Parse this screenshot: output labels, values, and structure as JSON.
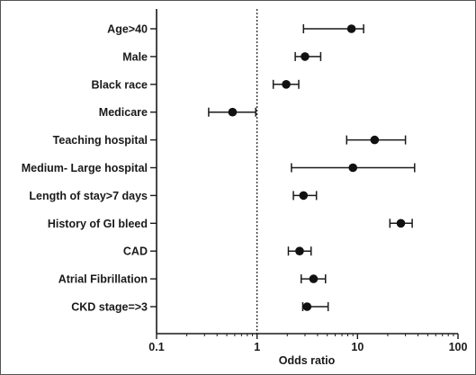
{
  "chart_data": {
    "type": "forest",
    "xlabel": "Odds ratio",
    "xscale": "log",
    "xlim": [
      0.1,
      100
    ],
    "xticks": [
      0.1,
      1,
      10,
      100
    ],
    "xtick_labels": [
      "0.1",
      "1",
      "10",
      "100"
    ],
    "reference_line": 1,
    "rows": [
      {
        "label": "Age>40",
        "or": 8.7,
        "lo": 2.9,
        "hi": 11.5
      },
      {
        "label": "Male",
        "or": 3.0,
        "lo": 2.4,
        "hi": 4.3
      },
      {
        "label": "Black race",
        "or": 1.95,
        "lo": 1.45,
        "hi": 2.6
      },
      {
        "label": "Medicare",
        "or": 0.57,
        "lo": 0.33,
        "hi": 0.97
      },
      {
        "label": "Teaching hospital",
        "or": 14.8,
        "lo": 7.8,
        "hi": 30
      },
      {
        "label": "Medium- Large hospital",
        "or": 9.0,
        "lo": 2.2,
        "hi": 37
      },
      {
        "label": "Length of stay>7 days",
        "or": 2.9,
        "lo": 2.3,
        "hi": 3.9
      },
      {
        "label": "History of GI bleed",
        "or": 27,
        "lo": 21,
        "hi": 35
      },
      {
        "label": "CAD",
        "or": 2.65,
        "lo": 2.05,
        "hi": 3.45
      },
      {
        "label": "Atrial Fibrillation",
        "or": 3.65,
        "lo": 2.75,
        "hi": 4.8
      },
      {
        "label": "CKD stage=>3",
        "or": 3.15,
        "lo": 2.85,
        "hi": 5.1
      }
    ]
  }
}
